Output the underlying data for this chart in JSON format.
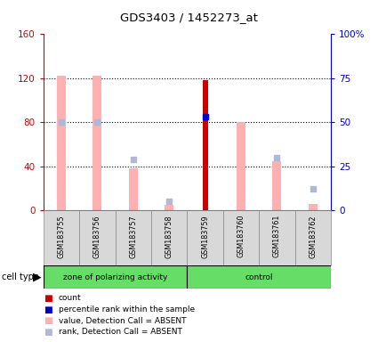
{
  "title": "GDS3403 / 1452273_at",
  "samples": [
    "GSM183755",
    "GSM183756",
    "GSM183757",
    "GSM183758",
    "GSM183759",
    "GSM183760",
    "GSM183761",
    "GSM183762"
  ],
  "ylim_left": [
    0,
    160
  ],
  "ylim_right": [
    0,
    100
  ],
  "yticks_left": [
    0,
    40,
    80,
    120,
    160
  ],
  "yticks_right": [
    0,
    25,
    50,
    75,
    100
  ],
  "ytick_labels_right": [
    "0",
    "25",
    "50",
    "75",
    "100%"
  ],
  "pink_bar_values": [
    122,
    122,
    38,
    5,
    0,
    80,
    45,
    6
  ],
  "light_blue_pct": [
    null,
    null,
    29,
    5,
    null,
    null,
    30,
    12
  ],
  "red_bar_values": [
    null,
    null,
    null,
    null,
    118,
    null,
    null,
    null
  ],
  "blue_square_pct": [
    null,
    null,
    null,
    null,
    53,
    null,
    null,
    null
  ],
  "lb_square_absent_pct": [
    50,
    50,
    null,
    null,
    null,
    null,
    null,
    null
  ],
  "group_labels": [
    "zone of polarizing activity",
    "control"
  ],
  "cell_type_label": "cell type",
  "legend_items": [
    {
      "label": "count",
      "color": "#cc0000"
    },
    {
      "label": "percentile rank within the sample",
      "color": "#0000cc"
    },
    {
      "label": "value, Detection Call = ABSENT",
      "color": "#ffb0b0"
    },
    {
      "label": "rank, Detection Call = ABSENT",
      "color": "#b0b8d8"
    }
  ],
  "pink_color": "#ffb0b0",
  "light_blue_color": "#b0b8d8",
  "red_color": "#cc0000",
  "blue_color": "#0000cc",
  "left_axis_color": "#cc0000",
  "right_axis_color": "#0000bb",
  "grid_yticks": [
    40,
    80,
    120
  ],
  "green_color": "#66dd66"
}
